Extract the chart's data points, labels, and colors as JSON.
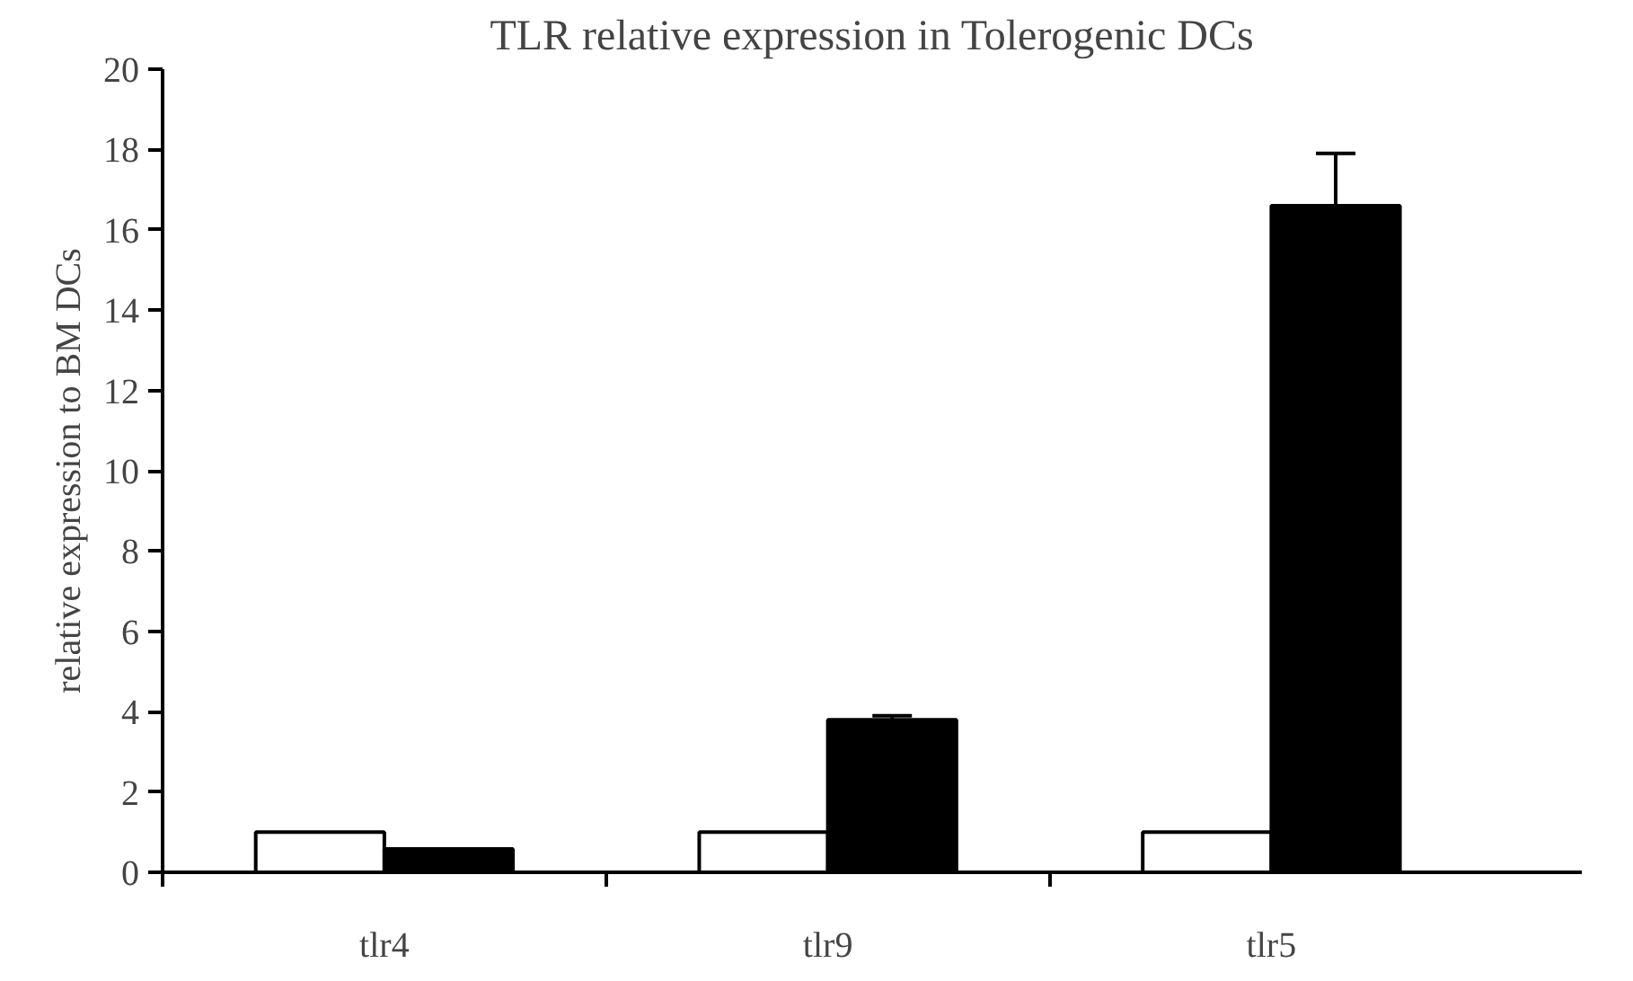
{
  "chart_data": {
    "type": "bar",
    "title": "TLR relative expression in Tolerogenic DCs",
    "ylabel": "relative expression to BM DCs",
    "categories": [
      "tlr4",
      "tlr9",
      "tlr5"
    ],
    "series": [
      {
        "color": "#ffffff",
        "values": [
          1.0,
          1.0,
          1.0
        ]
      },
      {
        "color": "#000000",
        "values": [
          0.58,
          3.8,
          16.6
        ],
        "errors": [
          null,
          0.1,
          1.3
        ]
      }
    ],
    "ylim": [
      0,
      20
    ],
    "yticks": [
      0,
      2,
      4,
      6,
      8,
      10,
      12,
      14,
      16,
      18,
      20
    ],
    "grid": false
  }
}
